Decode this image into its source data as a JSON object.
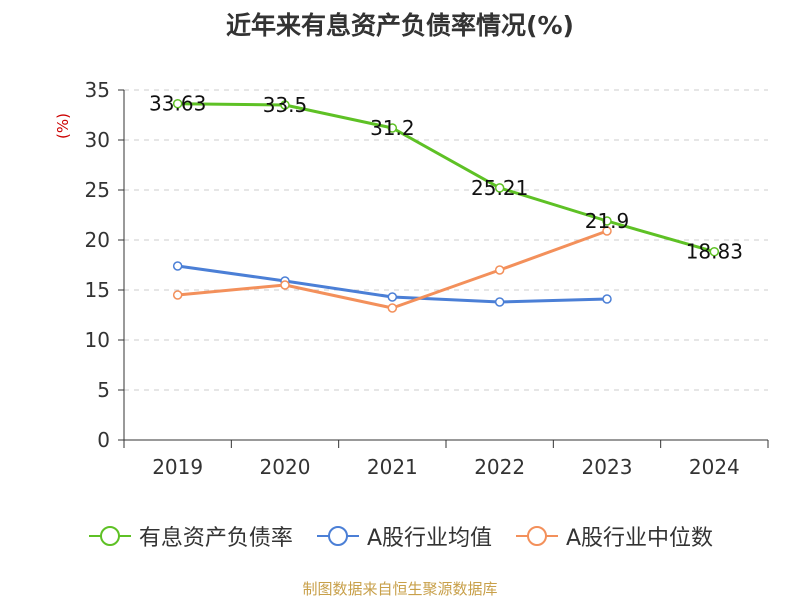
{
  "chart_data": {
    "type": "line",
    "title": "近年来有息资产负债率情况(%)",
    "ylabel": "(%)",
    "categories": [
      "2019",
      "2020",
      "2021",
      "2022",
      "2023",
      "2024"
    ],
    "ylim": [
      0,
      35
    ],
    "yticks": [
      "0",
      "5",
      "10",
      "15",
      "20",
      "25",
      "30",
      "35"
    ],
    "grid": true,
    "legend_position": "bottom",
    "series": [
      {
        "name": "有息资产负债率",
        "color": "#5ec125",
        "values": [
          33.63,
          33.5,
          31.2,
          25.21,
          21.9,
          18.83
        ],
        "labels": [
          "33.63",
          "33.5",
          "31.2",
          "25.21",
          "21.9",
          "18.83"
        ]
      },
      {
        "name": "A股行业均值",
        "color": "#4b7fd6",
        "values": [
          17.4,
          15.9,
          14.3,
          13.8,
          14.1,
          null
        ]
      },
      {
        "name": "A股行业中位数",
        "color": "#f3905b",
        "values": [
          14.5,
          15.5,
          13.2,
          17.0,
          20.9,
          null
        ]
      }
    ]
  },
  "footer": "制图数据来自恒生聚源数据库"
}
